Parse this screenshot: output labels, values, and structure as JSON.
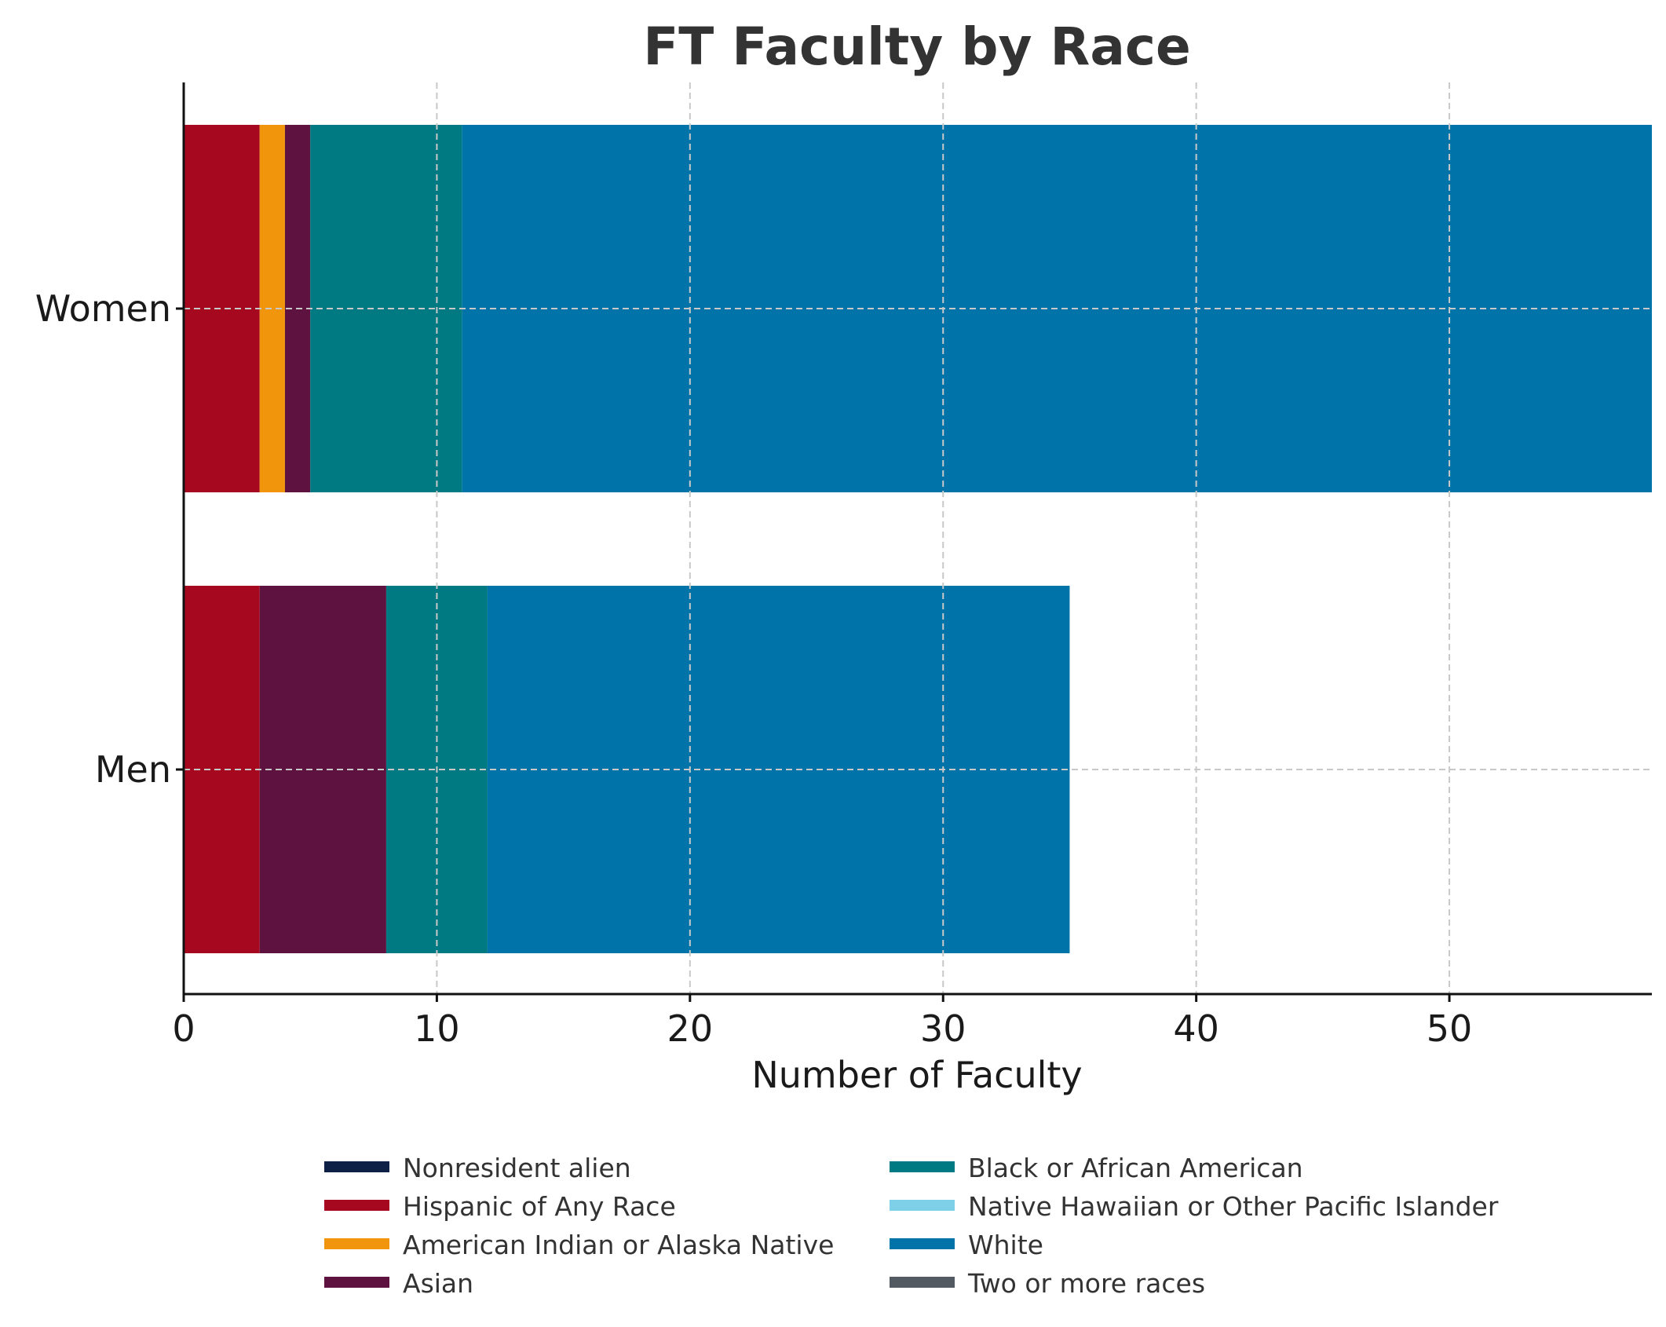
{
  "chart_data": {
    "type": "bar",
    "orientation": "horizontal",
    "stacked": true,
    "title": "FT Faculty by Race",
    "xlabel": "Number of Faculty",
    "ylabel": "",
    "categories": [
      "Women",
      "Men"
    ],
    "xlim": [
      0,
      58
    ],
    "xticks": [
      0,
      10,
      20,
      30,
      40,
      50
    ],
    "grid": true,
    "legend_position": "bottom",
    "legend_columns": 2,
    "series": [
      {
        "name": "Nonresident alien",
        "color": "#0e2046",
        "values": [
          0,
          0
        ]
      },
      {
        "name": "Hispanic of Any Race",
        "color": "#a6091f",
        "values": [
          3,
          3
        ]
      },
      {
        "name": "American Indian or Alaska Native",
        "color": "#f0950c",
        "values": [
          1,
          0
        ]
      },
      {
        "name": "Asian",
        "color": "#5e123f",
        "values": [
          1,
          5
        ]
      },
      {
        "name": "Black or African American",
        "color": "#007a82",
        "values": [
          6,
          4
        ]
      },
      {
        "name": "Native Hawaiian or Other Pacific Islander",
        "color": "#7ed0e8",
        "values": [
          0,
          0
        ]
      },
      {
        "name": "White",
        "color": "#0074a8",
        "values": [
          47,
          23
        ]
      },
      {
        "name": "Two or more races",
        "color": "#545a61",
        "values": [
          0,
          0
        ]
      }
    ]
  }
}
